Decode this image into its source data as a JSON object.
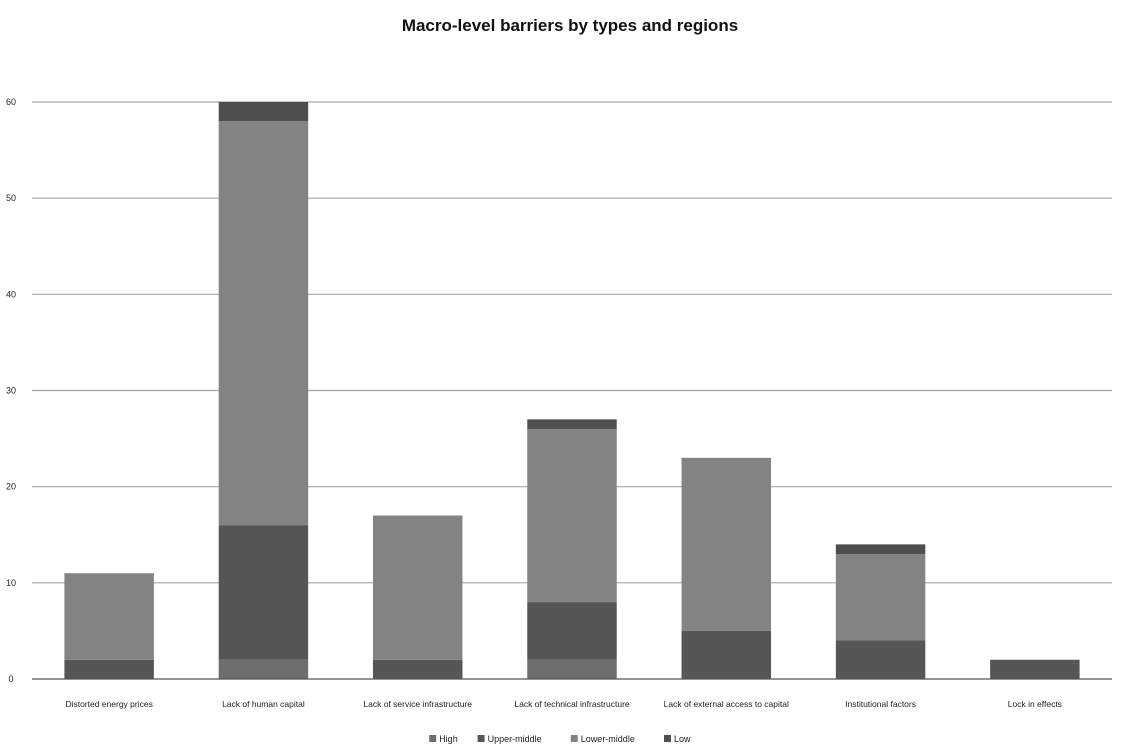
{
  "chart_data": {
    "type": "bar",
    "stacked": true,
    "title": "Macro-level barriers by types and regions",
    "xlabel": "",
    "ylabel": "",
    "ylim": [
      0,
      60
    ],
    "yticks": [
      0,
      10,
      20,
      30,
      40,
      50,
      60
    ],
    "grid": true,
    "legend_position": "bottom",
    "categories": [
      "Distorted energy prices",
      "Lack of human capital",
      "Lack of service infrastructure",
      "Lack of technical infrastructure",
      "Lack of external access to capital",
      "Institutional factors",
      "Lock in effects"
    ],
    "series": [
      {
        "name": "High",
        "color": "#6e6e6e",
        "values": [
          0,
          2,
          0,
          2,
          0,
          0,
          0
        ]
      },
      {
        "name": "Upper-middle",
        "color": "#565656",
        "values": [
          2,
          14,
          2,
          6,
          5,
          4,
          2
        ]
      },
      {
        "name": "Lower-middle",
        "color": "#838383",
        "values": [
          9,
          42,
          15,
          18,
          18,
          9,
          0
        ]
      },
      {
        "name": "Low",
        "color": "#4e4e4e",
        "values": [
          0,
          2,
          0,
          1,
          0,
          1,
          0
        ]
      }
    ]
  }
}
